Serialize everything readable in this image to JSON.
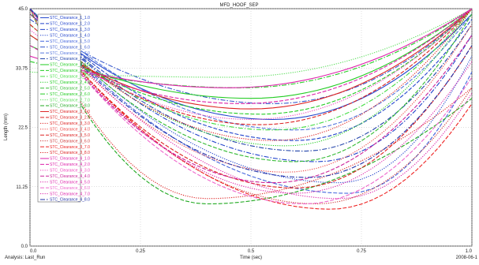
{
  "chart_data": {
    "type": "line",
    "title": "MFD_HOOF_SEP",
    "xlabel": "Time (sec)",
    "ylabel": "Length (mm)",
    "xlim": [
      0.0,
      1.0
    ],
    "ylim": [
      0.0,
      45.0
    ],
    "x_tick_labels": [
      "0.0",
      "0.25",
      "0.5",
      "0.75",
      "1.0"
    ],
    "y_tick_labels": [
      "0.0",
      "11.25",
      "22.5",
      "33.75",
      "45.0"
    ],
    "grid": true,
    "legend_position": "left",
    "analysis_label": "Analysis:  Last_Run",
    "date_label": "2008-06-1",
    "series": [
      {
        "name": "STC_Clearance_1_1.0",
        "color": "#2244cc",
        "dash": "solid",
        "x": [
          0,
          0.55,
          1.0
        ],
        "y": [
          44,
          24,
          44
        ]
      },
      {
        "name": "STC_Clearance_1_2.0",
        "color": "#2244cc",
        "dash": "dash",
        "x": [
          0,
          0.6,
          1.0
        ],
        "y": [
          45,
          20,
          43
        ]
      },
      {
        "name": "STC_Clearance_1_3.0",
        "color": "#2244cc",
        "dash": "dashdot",
        "x": [
          0,
          0.65,
          1.0
        ],
        "y": [
          45,
          16,
          40
        ]
      },
      {
        "name": "STC_Clearance_1_4.0",
        "color": "#2244cc",
        "dash": "dot",
        "x": [
          0,
          0.7,
          1.0
        ],
        "y": [
          45,
          12,
          36
        ]
      },
      {
        "name": "STC_Clearance_1_5.0",
        "color": "#4466dd",
        "dash": "dash",
        "x": [
          0,
          0.72,
          1.0
        ],
        "y": [
          45,
          10,
          33
        ]
      },
      {
        "name": "STC_Clearance_1_6.0",
        "color": "#3355cc",
        "dash": "dashdot",
        "x": [
          0,
          0.55,
          1.0
        ],
        "y": [
          43,
          27,
          45
        ]
      },
      {
        "name": "STC_Clearance_1_7.0",
        "color": "#5577dd",
        "dash": "dash",
        "x": [
          0,
          0.6,
          1.0
        ],
        "y": [
          45,
          22,
          44
        ]
      },
      {
        "name": "STC_Clearance_1_8.0",
        "color": "#2244aa",
        "dash": "dashdot",
        "x": [
          0,
          0.62,
          1.0
        ],
        "y": [
          45,
          18,
          42
        ]
      },
      {
        "name": "STC_Clearance_2_1.0",
        "color": "#22cc22",
        "dash": "solid",
        "x": [
          0,
          0.5,
          1.0
        ],
        "y": [
          38,
          28,
          45
        ]
      },
      {
        "name": "STC_Clearance_2_2.0",
        "color": "#22cc22",
        "dash": "dash",
        "x": [
          0,
          0.52,
          1.0
        ],
        "y": [
          40,
          25,
          45
        ]
      },
      {
        "name": "STC_Clearance_2_3.0",
        "color": "#44dd44",
        "dash": "dashdot",
        "x": [
          0,
          0.55,
          1.0
        ],
        "y": [
          42,
          22,
          45
        ]
      },
      {
        "name": "STC_Clearance_2_4.0",
        "color": "#22cc22",
        "dash": "dot",
        "x": [
          0,
          0.58,
          1.0
        ],
        "y": [
          44,
          19,
          45
        ]
      },
      {
        "name": "STC_Clearance_2_5.0",
        "color": "#33bb33",
        "dash": "dash",
        "x": [
          0,
          0.6,
          1.0
        ],
        "y": [
          45,
          16,
          44
        ]
      },
      {
        "name": "STC_Clearance_2_6.0",
        "color": "#22cc22",
        "dash": "dashdot",
        "x": [
          0,
          0.48,
          1.0
        ],
        "y": [
          35,
          30,
          45
        ]
      },
      {
        "name": "STC_Clearance_2_7.0",
        "color": "#55dd55",
        "dash": "dot",
        "x": [
          0,
          0.45,
          1.0
        ],
        "y": [
          33,
          32,
          45
        ]
      },
      {
        "name": "STC_Clearance_2_8.0",
        "color": "#22aa22",
        "dash": "dash",
        "x": [
          0,
          0.4,
          1.0
        ],
        "y": [
          45,
          8,
          28
        ]
      },
      {
        "name": "STC_Clearance_3_1.0",
        "color": "#dd2222",
        "dash": "solid",
        "x": [
          0,
          0.5,
          1.0
        ],
        "y": [
          40,
          26,
          45
        ]
      },
      {
        "name": "STC_Clearance_3_2.0",
        "color": "#dd2222",
        "dash": "dash",
        "x": [
          0,
          0.52,
          1.0
        ],
        "y": [
          42,
          23,
          45
        ]
      },
      {
        "name": "STC_Clearance_3_3.0",
        "color": "#dd2222",
        "dash": "dot",
        "x": [
          0,
          0.55,
          1.0
        ],
        "y": [
          44,
          20,
          45
        ]
      },
      {
        "name": "STC_Clearance_3_4.0",
        "color": "#ee4444",
        "dash": "dot",
        "x": [
          0,
          0.58,
          1.0
        ],
        "y": [
          45,
          14,
          42
        ]
      },
      {
        "name": "STC_Clearance_3_5.0",
        "color": "#dd2222",
        "dash": "dash",
        "x": [
          0,
          0.6,
          1.0
        ],
        "y": [
          45,
          11,
          38
        ]
      },
      {
        "name": "STC_Clearance_3_6.0",
        "color": "#cc3333",
        "dash": "dot",
        "x": [
          0,
          0.65,
          1.0
        ],
        "y": [
          45,
          8,
          30
        ]
      },
      {
        "name": "STC_Clearance_3_7.0",
        "color": "#ee2222",
        "dash": "dash",
        "x": [
          0,
          0.68,
          1.0
        ],
        "y": [
          45,
          7,
          27
        ]
      },
      {
        "name": "STC_Clearance_3_8.0",
        "color": "#dd2222",
        "dash": "dot",
        "x": [
          0,
          0.4,
          1.0
        ],
        "y": [
          45,
          9,
          30
        ]
      },
      {
        "name": "STC_Clearance_4_1.0",
        "color": "#dd22aa",
        "dash": "solid",
        "x": [
          0,
          0.45,
          1.0
        ],
        "y": [
          36,
          30,
          45
        ]
      },
      {
        "name": "STC_Clearance_4_2.0",
        "color": "#dd22aa",
        "dash": "dash",
        "x": [
          0,
          0.48,
          1.0
        ],
        "y": [
          38,
          27,
          45
        ]
      },
      {
        "name": "STC_Clearance_4_3.0",
        "color": "#ee44bb",
        "dash": "dot",
        "x": [
          0,
          0.5,
          1.0
        ],
        "y": [
          41,
          24,
          45
        ]
      },
      {
        "name": "STC_Clearance_4_4.0",
        "color": "#cc2299",
        "dash": "dash",
        "x": [
          0,
          0.55,
          1.0
        ],
        "y": [
          45,
          12,
          40
        ]
      },
      {
        "name": "STC_Clearance_4_5.0",
        "color": "#dd22aa",
        "dash": "dot",
        "x": [
          0,
          0.6,
          1.0
        ],
        "y": [
          45,
          10,
          35
        ]
      },
      {
        "name": "STC_Clearance_4_6.0",
        "color": "#ee66cc",
        "dash": "dash",
        "x": [
          0,
          0.62,
          1.0
        ],
        "y": [
          45,
          8,
          32
        ]
      },
      {
        "name": "STC_Clearance_4_7.0",
        "color": "#dd22aa",
        "dash": "dot",
        "x": [
          0,
          0.7,
          1.0
        ],
        "y": [
          45,
          9,
          29
        ]
      },
      {
        "name": "STC_Clearance_4_8.0",
        "color": "#2233aa",
        "dash": "dashdot",
        "x": [
          0,
          0.63,
          1.0
        ],
        "y": [
          45,
          13,
          38
        ]
      }
    ]
  }
}
